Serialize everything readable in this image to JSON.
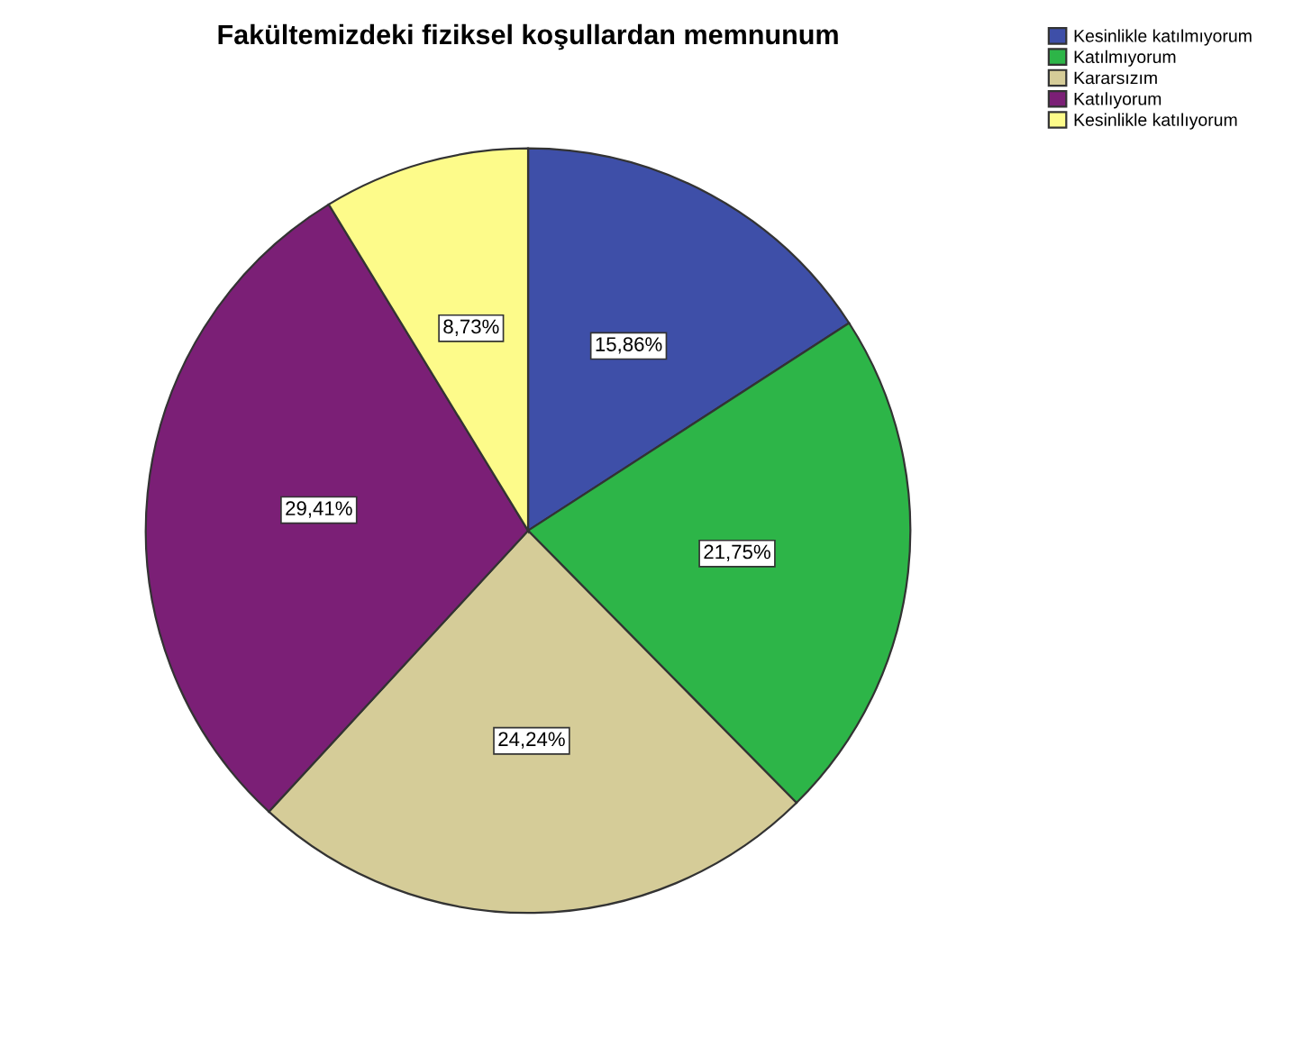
{
  "chart_data": {
    "type": "pie",
    "title": "Fakültemizdeki fiziksel koşullardan memnunum",
    "categories": [
      "Kesinlikle katılmıyorum",
      "Katılmıyorum",
      "Kararsızım",
      "Katılıyorum",
      "Kesinlikle katılıyorum"
    ],
    "values": [
      15.86,
      21.75,
      24.24,
      29.41,
      8.73
    ],
    "value_labels": [
      "15,86%",
      "21,75%",
      "24,24%",
      "29,41%",
      "8,73%"
    ],
    "colors": [
      "#3e4fa8",
      "#2db548",
      "#d5cc98",
      "#7b1f76",
      "#fdfb8a"
    ],
    "legend": "top right"
  }
}
